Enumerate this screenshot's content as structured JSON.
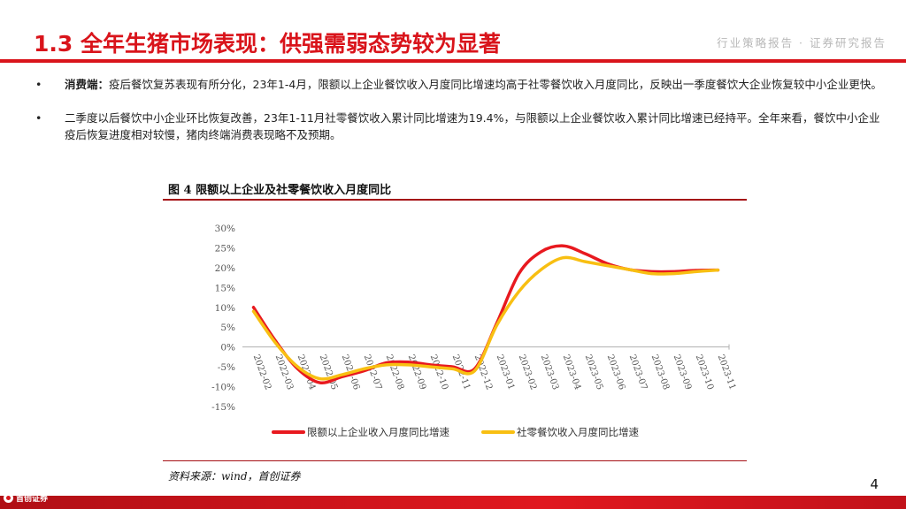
{
  "header": {
    "title": "1.3 全年生猪市场表现：供强需弱态势较为显著",
    "tag": "行业策略报告 · 证券研究报告"
  },
  "bullets": [
    {
      "marker": "•",
      "lead": "消费端：",
      "text": "疫后餐饮复苏表现有所分化，23年1-4月，限额以上企业餐饮收入月度同比增速均高于社零餐饮收入月度同比，反映出一季度餐饮大企业恢复较中小企业更快。"
    },
    {
      "marker": "•",
      "lead": "",
      "text": "二季度以后餐饮中小企业环比恢复改善，23年1-11月社零餐饮收入累计同比增速为19.4%，与限额以上企业餐饮收入累计同比增速已经持平。全年来看，餐饮中小企业疫后恢复进度相对较慢，猪肉终端消费表现略不及预期。"
    }
  ],
  "figure": {
    "title": "图 4  限额以上企业及社零餐饮收入月度同比",
    "source": "资料来源：wind，首创证券"
  },
  "chart_data": {
    "type": "line",
    "title": "",
    "xlabel": "",
    "ylabel": "",
    "ylim": [
      -15,
      30
    ],
    "yticks": [
      30,
      25,
      20,
      15,
      10,
      5,
      0,
      -5,
      -10,
      -15
    ],
    "ytick_labels": [
      "30%",
      "25%",
      "20%",
      "15%",
      "10%",
      "5%",
      "0%",
      "-5%",
      "-10%",
      "-15%"
    ],
    "grid": false,
    "legend_position": "bottom",
    "categories": [
      "2022-02",
      "2022-03",
      "2022-04",
      "2022-05",
      "2022-06",
      "2022-07",
      "2022-08",
      "2022-09",
      "2022-10",
      "2022-11",
      "2022-12",
      "2023-01",
      "2023-02",
      "2023-03",
      "2023-04",
      "2023-05",
      "2023-06",
      "2023-07",
      "2023-08",
      "2023-09",
      "2023-10",
      "2023-11"
    ],
    "series": [
      {
        "name": "限额以上企业收入月度同比增速",
        "color": "#e8191f",
        "values": [
          10,
          1.5,
          -5.5,
          -9.0,
          -7.5,
          -6.0,
          -4.0,
          -3.8,
          -4.5,
          -5.0,
          -5.5,
          6.0,
          18.5,
          24.0,
          25.5,
          23.5,
          21.0,
          19.5,
          19.0,
          19.0,
          19.3,
          19.4
        ]
      },
      {
        "name": "社零餐饮收入月度同比增速",
        "color": "#f8bf12",
        "values": [
          9,
          1.0,
          -5.0,
          -8.0,
          -7.0,
          -5.5,
          -4.5,
          -4.5,
          -5.0,
          -5.5,
          -6.0,
          5.5,
          14.0,
          19.5,
          22.5,
          21.5,
          20.5,
          19.5,
          18.5,
          18.5,
          19.0,
          19.4
        ]
      }
    ]
  },
  "page": {
    "number": "4"
  },
  "footer": {
    "logo_text": "首创证券"
  }
}
